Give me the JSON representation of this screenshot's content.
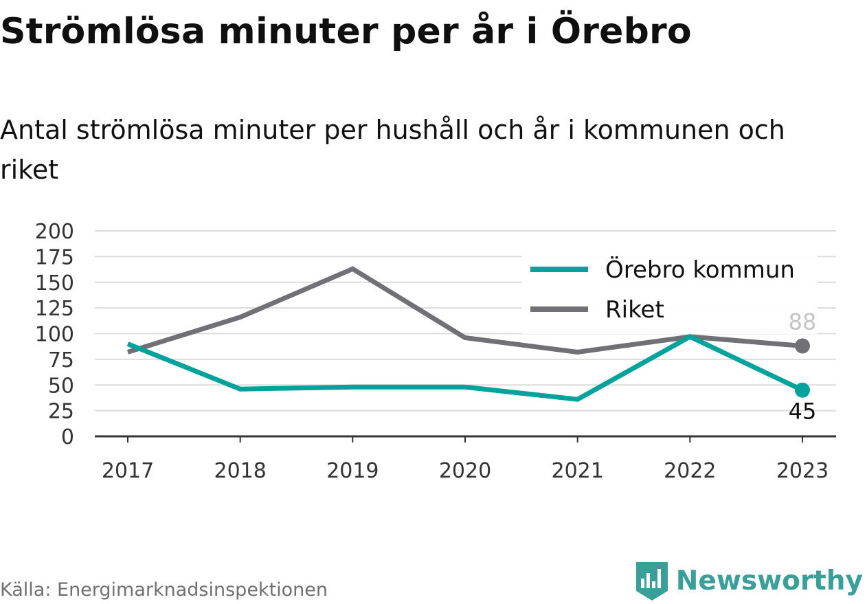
{
  "header": {
    "title": "Strömlösa minuter per år i Örebro",
    "subtitle": "Antal strömlösa minuter per hushåll och år i kommunen och riket"
  },
  "footer": {
    "source": "Källa: Energimarknadsinspektionen",
    "brand": "Newsworthy",
    "brand_icon": "bar-chart-badge-icon",
    "brand_color": "#3a9f99"
  },
  "chart_data": {
    "type": "line",
    "title": "",
    "xlabel": "",
    "ylabel": "",
    "x": [
      "2017",
      "2018",
      "2019",
      "2020",
      "2021",
      "2022",
      "2023"
    ],
    "y_ticks": [
      "0",
      "25",
      "50",
      "75",
      "100",
      "125",
      "150",
      "175",
      "200"
    ],
    "ylim": [
      0,
      200
    ],
    "grid": "horizontal",
    "legend_position": "top-right",
    "series": [
      {
        "name": "Örebro kommun",
        "color": "#00a39b",
        "values": [
          90,
          46,
          48,
          48,
          36,
          97,
          45
        ],
        "end_label": "45",
        "end_label_color": "#111111"
      },
      {
        "name": "Riket",
        "color": "#707075",
        "values": [
          82,
          116,
          163,
          96,
          82,
          97,
          88
        ],
        "end_label": "88",
        "end_label_color": "#c4c4c4"
      }
    ]
  }
}
